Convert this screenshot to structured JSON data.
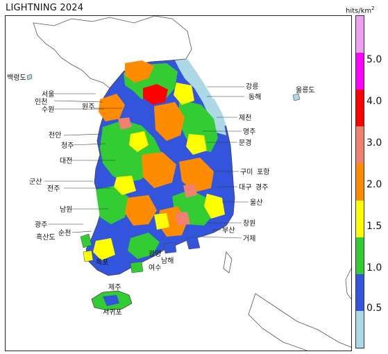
{
  "title": "LIGHTNING 2024",
  "legend": {
    "unit_base": "hits/km",
    "unit_exp": "2",
    "ticks": [
      "5.0",
      "4.0",
      "3.0",
      "2.0",
      "1.5",
      "1.0",
      "0.5"
    ],
    "colors_top_to_bottom": [
      "#f0a0f0",
      "#ff00ff",
      "#ff0000",
      "#f08070",
      "#ff8c00",
      "#ffff00",
      "#33cc33",
      "#3355dd",
      "#add8e6"
    ]
  },
  "cities": {
    "baengnyeongdo": "백령도",
    "seoul": "서울",
    "incheon": "인천",
    "suwon": "수원",
    "wonju": "원주",
    "cheonan": "천안",
    "cheongju": "청주",
    "daejeon": "대전",
    "gunsan": "군산",
    "jeonju": "전주",
    "namwon": "남원",
    "gwangju": "광주",
    "suncheon": "순천",
    "heuksando": "흑산도",
    "mokpo": "목포",
    "gwangyang": "광양",
    "yeosu": "여수",
    "namhae": "남해",
    "jeju": "제주",
    "seogwipo": "서귀포",
    "gangneung": "강릉",
    "donghae": "동해",
    "ulleungdo": "울릉도",
    "jecheon": "제천",
    "yeongju": "영주",
    "mungyeong": "문경",
    "gumi": "구미",
    "pohang": "포항",
    "daegu": "대구",
    "gyeongju": "경주",
    "ulsan": "울산",
    "changwon": "창원",
    "busan": "부산",
    "geoje": "거제"
  }
}
